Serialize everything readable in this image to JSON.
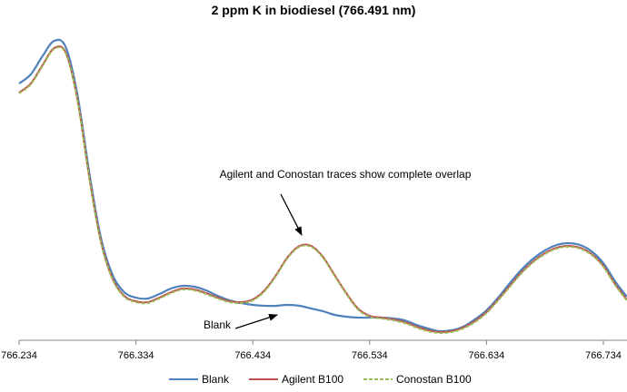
{
  "chart_data": {
    "type": "line",
    "title": "2 ppm K in biodiesel (766.491 nm)",
    "xlabel": "",
    "ylabel": "",
    "xlim": [
      766.234,
      766.755
    ],
    "ylim": [
      0,
      345
    ],
    "grid": false,
    "legend_position": "bottom",
    "x_ticks": [
      "766.234",
      "766.334",
      "766.434",
      "766.534",
      "766.634",
      "766.734"
    ],
    "x_tick_values": [
      766.234,
      766.334,
      766.434,
      766.534,
      766.634,
      766.734
    ],
    "x_start": 766.234,
    "x_step": 0.01,
    "series": [
      {
        "name": "Blank",
        "color": "#4F81BD",
        "dashed": false,
        "values": [
          283,
          293,
          313,
          330,
          323,
          270,
          185,
          113,
          72,
          53,
          47,
          46,
          51,
          57,
          60,
          59,
          55,
          49,
          44,
          41,
          39,
          38,
          38,
          39,
          38,
          35,
          32,
          28,
          26,
          25,
          25,
          25,
          24,
          22,
          17,
          13,
          10,
          11,
          15,
          23,
          33,
          47,
          63,
          78,
          90,
          99,
          105,
          107,
          105,
          98,
          85,
          65,
          48
        ]
      },
      {
        "name": "Agilent B100",
        "color": "#C0504D",
        "dashed": false,
        "values": [
          273,
          283,
          303,
          322,
          317,
          265,
          180,
          109,
          68,
          49,
          43,
          42,
          47,
          53,
          57,
          56,
          52,
          47,
          43,
          42,
          45,
          55,
          72,
          92,
          104,
          104,
          92,
          72,
          52,
          35,
          27,
          25,
          23,
          20,
          15,
          11,
          9,
          10,
          14,
          21,
          31,
          45,
          60,
          75,
          87,
          96,
          102,
          104,
          102,
          95,
          82,
          62,
          45
        ]
      },
      {
        "name": "Conostan B100",
        "color": "#9BBB59",
        "dashed": true,
        "values": [
          272,
          282,
          302,
          321,
          316,
          264,
          179,
          108,
          67,
          48,
          42,
          41,
          46,
          52,
          56,
          55,
          51,
          46,
          42,
          41,
          44,
          54,
          71,
          91,
          103,
          103,
          91,
          71,
          51,
          34,
          26,
          24,
          22,
          19,
          14,
          10,
          8,
          9,
          13,
          20,
          30,
          44,
          59,
          74,
          86,
          95,
          101,
          103,
          101,
          94,
          81,
          61,
          44
        ]
      }
    ],
    "annotations": [
      {
        "text": "Agilent and Conostan traces show complete overlap"
      },
      {
        "text": "Blank"
      }
    ]
  }
}
